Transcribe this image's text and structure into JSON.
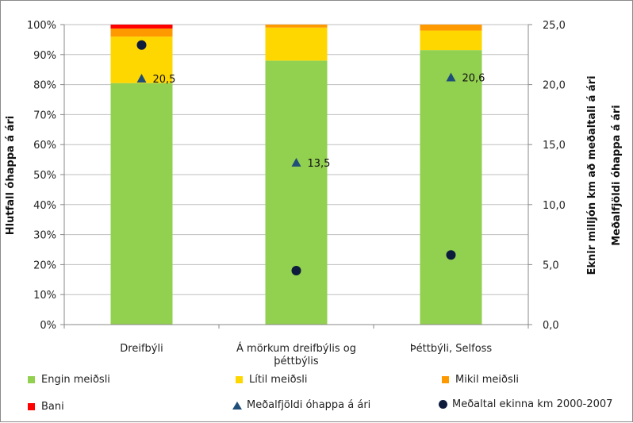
{
  "chart_data": {
    "type": "bar",
    "stacked": true,
    "categories": [
      "Dreifbýli",
      "Á mörkum dreifbýlis og þéttbýlis",
      "Þéttbýli, Selfoss"
    ],
    "ylabel": "Hlutfall óhappa á ári",
    "y2label_1": "Eknir milljón km að meðaltali á ári",
    "y2label_2": "Meðalfjöldi óhappa á ári",
    "yticks": [
      "0%",
      "10%",
      "20%",
      "30%",
      "40%",
      "50%",
      "60%",
      "70%",
      "80%",
      "90%",
      "100%"
    ],
    "y2ticks": [
      "0,0",
      "5,0",
      "10,0",
      "15,0",
      "20,0",
      "25,0"
    ],
    "ylim": [
      0,
      100
    ],
    "y2lim": [
      0,
      25
    ],
    "grid": true,
    "legend": "bottom",
    "series": [
      {
        "name": "Engin meiðsli",
        "color": "#92d050",
        "values": [
          80.5,
          88,
          91.5
        ]
      },
      {
        "name": "Lítil meiðsli",
        "color": "#ffd700",
        "values": [
          15.5,
          11,
          6.5
        ]
      },
      {
        "name": "Mikil meiðsli",
        "color": "#ff9900",
        "values": [
          2.7,
          1,
          2
        ]
      },
      {
        "name": "Bani",
        "color": "#ff0000",
        "values": [
          1.3,
          0,
          0
        ]
      }
    ],
    "markers": [
      {
        "name": "Meðalfjöldi óhappa á ári",
        "shape": "triangle",
        "color": "#1f4e79",
        "values": [
          20.5,
          13.5,
          20.6
        ],
        "labels": [
          "20,5",
          "13,5",
          "20,6"
        ]
      },
      {
        "name": "Meðaltal ekinna km 2000-2007",
        "shape": "circle",
        "color": "#0d1b3d",
        "values": [
          23.3,
          4.5,
          5.8
        ]
      }
    ]
  }
}
